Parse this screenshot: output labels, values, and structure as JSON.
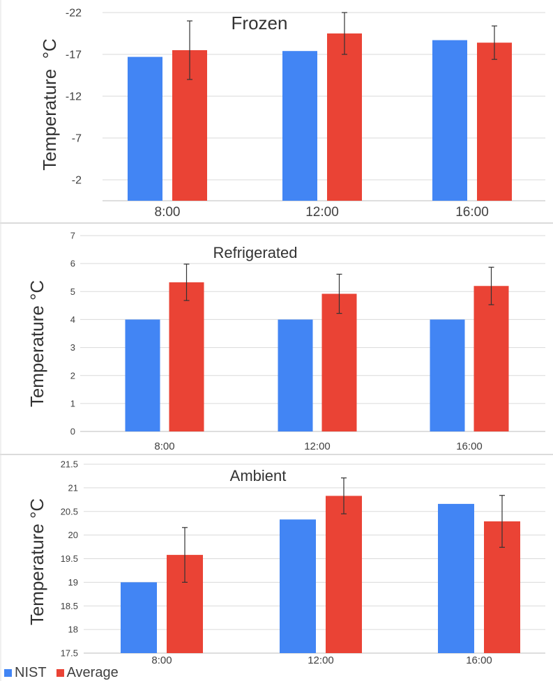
{
  "colors": {
    "nist": "#4285F4",
    "average": "#EA4335",
    "grid": "#DADADA",
    "error_bar": "#333333",
    "text": "#404040",
    "divider": "#CFCFCF"
  },
  "legend": {
    "items": [
      {
        "label": "NIST",
        "color": "#4285F4"
      },
      {
        "label": "Average",
        "color": "#EA4335"
      }
    ]
  },
  "chart_data": [
    {
      "type": "bar",
      "title": "Frozen",
      "ylabel": "Temperature  °C",
      "categories": [
        "8:00",
        "12:00",
        "16:00"
      ],
      "yticks": [
        "-22",
        "-17",
        "-12",
        "-7",
        "-2"
      ],
      "ylim": [
        -22,
        0.5
      ],
      "y_inverted": true,
      "baseline": 0.5,
      "grid": true,
      "series": [
        {
          "name": "NIST",
          "values": [
            -16.7,
            -17.4,
            -18.7
          ]
        },
        {
          "name": "Average",
          "values": [
            -17.5,
            -19.5,
            -18.4
          ],
          "error": [
            3.5,
            2.5,
            2.0
          ]
        }
      ]
    },
    {
      "type": "bar",
      "title": "Refrigerated",
      "ylabel": "Temperature °C",
      "categories": [
        "8:00",
        "12:00",
        "16:00"
      ],
      "yticks": [
        "0",
        "1",
        "2",
        "3",
        "4",
        "5",
        "6",
        "7"
      ],
      "ylim": [
        0,
        7
      ],
      "y_inverted": false,
      "baseline": 0,
      "grid": true,
      "series": [
        {
          "name": "NIST",
          "values": [
            4.0,
            4.0,
            4.0
          ]
        },
        {
          "name": "Average",
          "values": [
            5.33,
            4.92,
            5.2
          ],
          "error": [
            0.65,
            0.7,
            0.67
          ]
        }
      ]
    },
    {
      "type": "bar",
      "title": "Ambient",
      "ylabel": "Temperature °C",
      "categories": [
        "8:00",
        "12:00",
        "16:00"
      ],
      "yticks": [
        "17.5",
        "18",
        "18.5",
        "19",
        "19.5",
        "20",
        "20.5",
        "21",
        "21.5"
      ],
      "ylim": [
        17.5,
        21.5
      ],
      "y_inverted": false,
      "baseline": 17.5,
      "grid": true,
      "series": [
        {
          "name": "NIST",
          "values": [
            19.0,
            20.33,
            20.66
          ]
        },
        {
          "name": "Average",
          "values": [
            19.58,
            20.83,
            20.29
          ],
          "error": [
            0.58,
            0.38,
            0.55
          ]
        }
      ]
    }
  ]
}
